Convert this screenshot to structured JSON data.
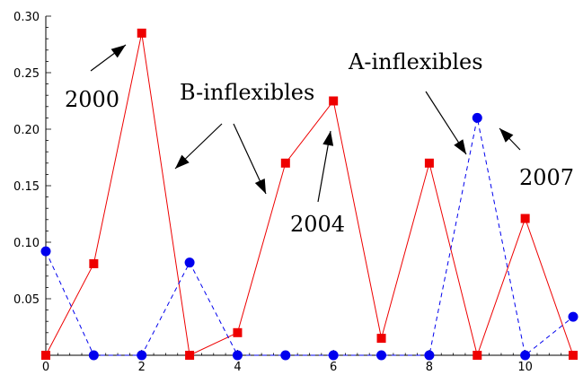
{
  "chart_data": {
    "type": "line",
    "xlim": [
      0,
      11
    ],
    "ylim": [
      0,
      0.3
    ],
    "x_ticks": [
      "0",
      "2",
      "4",
      "6",
      "8",
      "10"
    ],
    "y_ticks": [
      "0.05",
      "0.10",
      "0.15",
      "0.20",
      "0.25",
      "0.30"
    ],
    "x": [
      0,
      1,
      2,
      3,
      4,
      5,
      6,
      7,
      8,
      9,
      10,
      11
    ],
    "series": [
      {
        "name": "B-inflexibles",
        "color": "#ee0000",
        "line_style": "solid",
        "marker": "square",
        "values": [
          0,
          0.081,
          0.285,
          0,
          0.02,
          0.17,
          0.225,
          0.015,
          0.17,
          0,
          0.121,
          0
        ]
      },
      {
        "name": "A-inflexibles",
        "color": "#0000ee",
        "line_style": "dashed",
        "marker": "circle",
        "values": [
          0.092,
          0,
          0,
          0.082,
          0,
          0,
          0,
          0,
          0,
          0.21,
          0,
          0.034
        ]
      }
    ],
    "annotations": [
      "2000",
      "2004",
      "2007"
    ]
  }
}
